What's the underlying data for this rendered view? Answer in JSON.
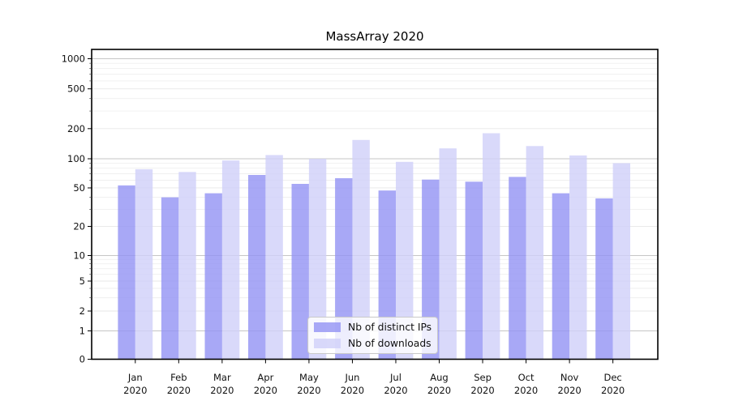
{
  "chart_data": {
    "type": "bar",
    "title": "MassArray 2020",
    "categories": [
      "Jan",
      "Feb",
      "Mar",
      "Apr",
      "May",
      "Jun",
      "Jul",
      "Aug",
      "Sep",
      "Oct",
      "Nov",
      "Dec"
    ],
    "year_label": "2020",
    "series": [
      {
        "name": "Nb of distinct IPs",
        "color": "#9292f4",
        "values": [
          53,
          40,
          44,
          68,
          55,
          63,
          47,
          61,
          58,
          65,
          44,
          39
        ]
      },
      {
        "name": "Nb of downloads",
        "color": "#cfcff9",
        "values": [
          78,
          73,
          96,
          109,
          100,
          154,
          93,
          127,
          180,
          134,
          108,
          90
        ]
      }
    ],
    "y_ticks": [
      0,
      1,
      2,
      5,
      10,
      20,
      50,
      100,
      200,
      500,
      1000
    ],
    "yscale": "symlog",
    "ylim": [
      0,
      1400
    ],
    "grid": true,
    "bar_opacity": 0.8,
    "legend_position": "lower center",
    "colors": {
      "spine": "#000000",
      "grid_major": "#c6c6c6",
      "grid_mid": "#e7e7e7",
      "grid_minor": "#efefef",
      "tick_label": "#111111"
    }
  }
}
